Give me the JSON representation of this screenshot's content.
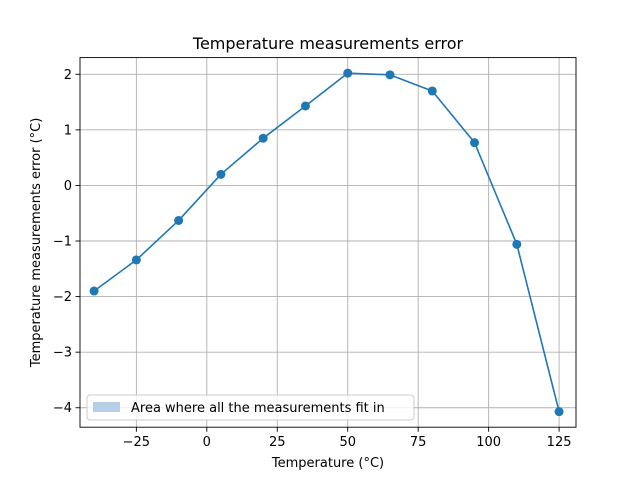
{
  "chart_data": {
    "type": "line",
    "title": "Temperature measurements error",
    "xlabel": "Temperature (°C)",
    "ylabel": "Temperature measurements error (°C)",
    "xlim": [
      -45,
      131
    ],
    "ylim": [
      -4.35,
      2.3
    ],
    "xticks": [
      -25,
      0,
      25,
      50,
      75,
      100,
      125
    ],
    "xtick_labels": [
      "−25",
      "0",
      "25",
      "50",
      "75",
      "100",
      "125"
    ],
    "yticks": [
      -4,
      -3,
      -2,
      -1,
      0,
      1,
      2
    ],
    "ytick_labels": [
      "−4",
      "−3",
      "−2",
      "−1",
      "0",
      "1",
      "2"
    ],
    "grid": true,
    "series": [
      {
        "x": [
          -40,
          -25,
          -10,
          5,
          20,
          35,
          50,
          65,
          80,
          95,
          110,
          125
        ],
        "y": [
          -1.9,
          -1.34,
          -0.63,
          0.2,
          0.85,
          1.43,
          2.02,
          1.99,
          1.7,
          0.77,
          -1.06,
          -4.07
        ],
        "markers": true
      }
    ],
    "legend": {
      "placement": "lower-left",
      "entries": [
        {
          "label": "Area where all the measurements fit in",
          "kind": "patch"
        }
      ]
    },
    "colors": {
      "line": "#1f77b4",
      "legend_patch": "#b5d0e6",
      "grid": "#b0b0b0",
      "axes": "#000000"
    }
  }
}
